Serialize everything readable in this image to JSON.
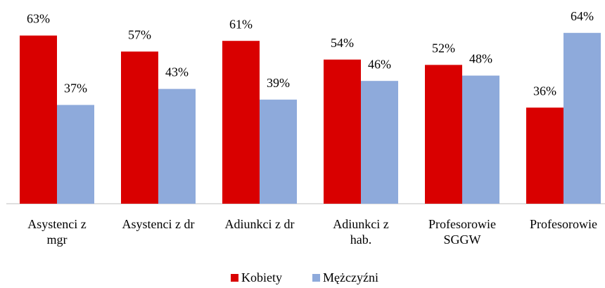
{
  "chart_data": {
    "type": "bar",
    "categories": [
      "Asystenci z\nmgr",
      "Asystenci z dr",
      "Adiunkci z dr",
      "Adiunkci z\nhab.",
      "Profesorowie\nSGGW",
      "Profesorowie"
    ],
    "series": [
      {
        "name": "Kobiety",
        "color": "#d90000",
        "values": [
          63,
          57,
          61,
          54,
          52,
          36
        ],
        "value_labels": [
          "63%",
          "57%",
          "61%",
          "54%",
          "52%",
          "36%"
        ]
      },
      {
        "name": "Mężczyźni",
        "color": "#8eaadb",
        "values": [
          37,
          43,
          39,
          46,
          48,
          64
        ],
        "value_labels": [
          "37%",
          "43%",
          "39%",
          "46%",
          "48%",
          "64%"
        ]
      }
    ],
    "legend": "bottom"
  }
}
